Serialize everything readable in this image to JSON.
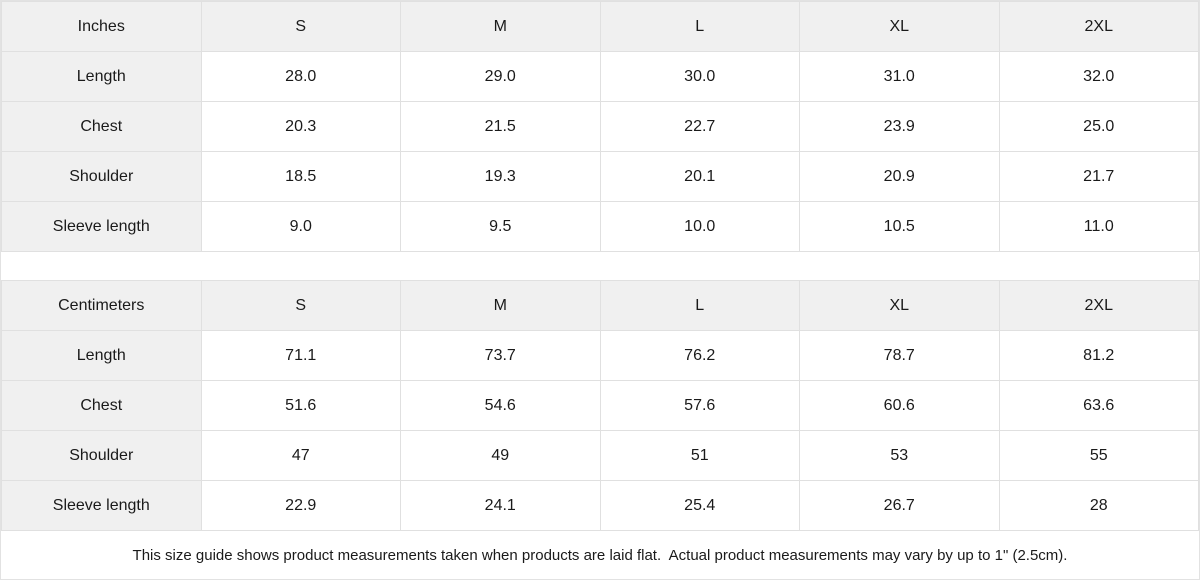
{
  "chart_data": [
    {
      "type": "table",
      "title": "Inches",
      "columns": [
        "Inches",
        "S",
        "M",
        "L",
        "XL",
        "2XL"
      ],
      "rows": [
        {
          "label": "Length",
          "values": [
            "28.0",
            "29.0",
            "30.0",
            "31.0",
            "32.0"
          ]
        },
        {
          "label": "Chest",
          "values": [
            "20.3",
            "21.5",
            "22.7",
            "23.9",
            "25.0"
          ]
        },
        {
          "label": "Shoulder",
          "values": [
            "18.5",
            "19.3",
            "20.1",
            "20.9",
            "21.7"
          ]
        },
        {
          "label": "Sleeve length",
          "values": [
            "9.0",
            "9.5",
            "10.0",
            "10.5",
            "11.0"
          ]
        }
      ]
    },
    {
      "type": "table",
      "title": "Centimeters",
      "columns": [
        "Centimeters",
        "S",
        "M",
        "L",
        "XL",
        "2XL"
      ],
      "rows": [
        {
          "label": "Length",
          "values": [
            "71.1",
            "73.7",
            "76.2",
            "78.7",
            "81.2"
          ]
        },
        {
          "label": "Chest",
          "values": [
            "51.6",
            "54.6",
            "57.6",
            "60.6",
            "63.6"
          ]
        },
        {
          "label": "Shoulder",
          "values": [
            "47",
            "49",
            "51",
            "53",
            "55"
          ]
        },
        {
          "label": "Sleeve length",
          "values": [
            "22.9",
            "24.1",
            "25.4",
            "26.7",
            "28"
          ]
        }
      ]
    }
  ],
  "footer": {
    "note": "This size guide shows product measurements taken when products are laid flat.  Actual product measurements may vary by up to 1\" (2.5cm)."
  },
  "colors": {
    "header_bg": "#f0f0f0",
    "border": "#e0e0e0",
    "text": "#1a1a1a",
    "background": "#ffffff"
  }
}
